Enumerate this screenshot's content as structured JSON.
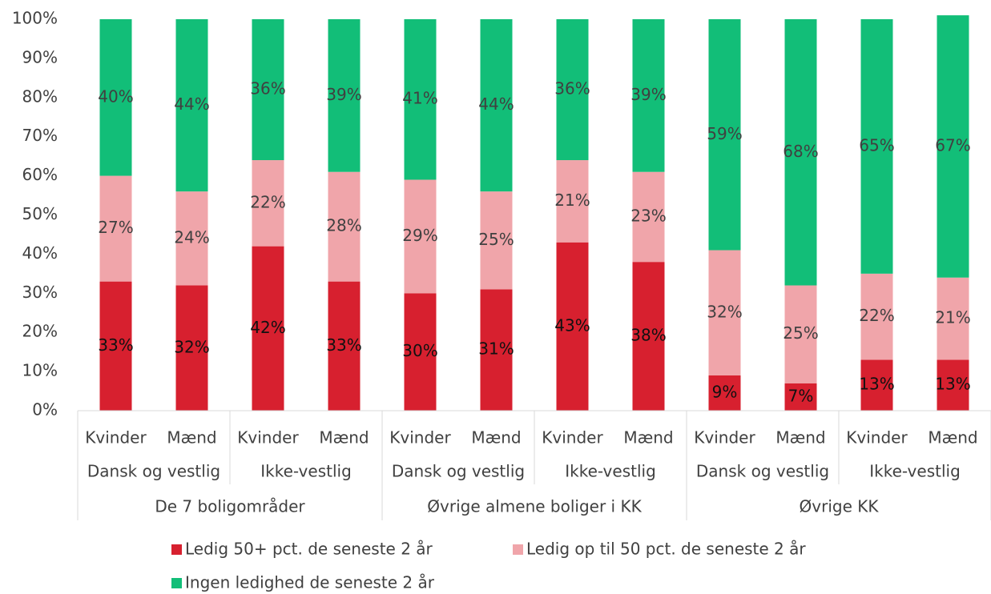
{
  "chart_data": {
    "type": "stacked_bar",
    "categories": [
      "Kvinder",
      "Mænd",
      "Kvinder",
      "Mænd",
      "Kvinder",
      "Mænd",
      "Kvinder",
      "Mænd",
      "Kvinder",
      "Mænd",
      "Kvinder",
      "Mænd"
    ],
    "category_level2": [
      "Dansk og vestlig",
      "Ikke-vestlig",
      "Dansk og vestlig",
      "Ikke-vestlig",
      "Dansk og vestlig",
      "Ikke-vestlig"
    ],
    "category_level3": [
      "De 7 boligområder",
      "Øvrige almene boliger i KK",
      "Øvrige KK"
    ],
    "series": [
      {
        "name": "Ledig 50+ pct. de seneste 2 år",
        "color": "#d7202f",
        "values": [
          33,
          32,
          42,
          33,
          30,
          31,
          43,
          38,
          9,
          7,
          13,
          13
        ],
        "value_labels": [
          "33%",
          "32%",
          "42%",
          "33%",
          "30%",
          "31%",
          "43%",
          "38%",
          "9%",
          "7%",
          "13%",
          "13%"
        ]
      },
      {
        "name": "Ledig op  til 50 pct. de seneste 2 år",
        "color": "#f0a5aa",
        "values": [
          27,
          24,
          22,
          28,
          29,
          25,
          21,
          23,
          32,
          25,
          22,
          21
        ],
        "value_labels": [
          "27%",
          "24%",
          "22%",
          "28%",
          "29%",
          "25%",
          "21%",
          "23%",
          "32%",
          "25%",
          "22%",
          "21%"
        ]
      },
      {
        "name": "Ingen ledighed de seneste 2 år",
        "color": "#12be78",
        "values": [
          40,
          44,
          36,
          39,
          41,
          44,
          36,
          39,
          59,
          68,
          65,
          67
        ],
        "value_labels": [
          "40%",
          "44%",
          "36%",
          "39%",
          "41%",
          "44%",
          "36%",
          "39%",
          "59%",
          "68%",
          "65%",
          "67%"
        ]
      }
    ],
    "ylim": [
      0,
      100
    ],
    "yticks": [
      {
        "value": 0,
        "label": "0%"
      },
      {
        "value": 10,
        "label": "10%"
      },
      {
        "value": 20,
        "label": "20%"
      },
      {
        "value": 30,
        "label": "30%"
      },
      {
        "value": 40,
        "label": "40%"
      },
      {
        "value": 50,
        "label": "50%"
      },
      {
        "value": 60,
        "label": "60%"
      },
      {
        "value": 70,
        "label": "70%"
      },
      {
        "value": 80,
        "label": "80%"
      },
      {
        "value": 90,
        "label": "90%"
      },
      {
        "value": 100,
        "label": "100%"
      }
    ],
    "legend": "bottom"
  }
}
